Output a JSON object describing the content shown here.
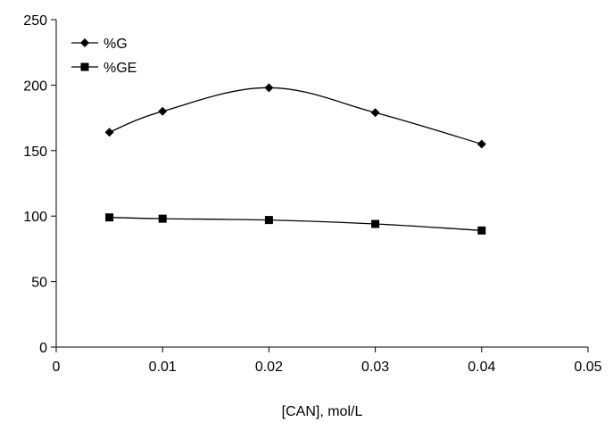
{
  "chart_data": {
    "type": "line",
    "xlabel": "[CAN], mol/L",
    "ylabel": "",
    "xlim": [
      0,
      0.05
    ],
    "ylim": [
      0,
      250
    ],
    "xticks": [
      0,
      0.01,
      0.02,
      0.03,
      0.04,
      0.05
    ],
    "xtick_labels": [
      "0",
      "0.01",
      "0.02",
      "0.03",
      "0.04",
      "0.05"
    ],
    "yticks": [
      0,
      50,
      100,
      150,
      200,
      250
    ],
    "ytick_labels": [
      "0",
      "50",
      "100",
      "150",
      "200",
      "250"
    ],
    "grid": false,
    "legend_position": "top-left",
    "series": [
      {
        "name": "%G",
        "marker": "diamond",
        "color": "#000000",
        "x": [
          0.005,
          0.01,
          0.02,
          0.03,
          0.04
        ],
        "y": [
          164,
          180,
          198,
          179,
          155
        ]
      },
      {
        "name": "%GE",
        "marker": "square",
        "color": "#000000",
        "x": [
          0.005,
          0.01,
          0.02,
          0.03,
          0.04
        ],
        "y": [
          99,
          98,
          97,
          94,
          89
        ]
      }
    ]
  }
}
